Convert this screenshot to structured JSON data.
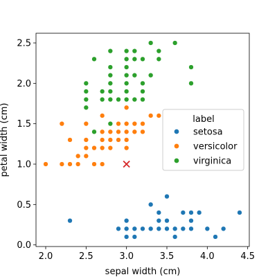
{
  "chart_data": {
    "type": "scatter",
    "xlabel": "sepal width (cm)",
    "ylabel": "petal width (cm)",
    "xlim": [
      1.88,
      4.52
    ],
    "ylim": [
      -0.02,
      2.62
    ],
    "xticks": [
      "2.0",
      "2.5",
      "3.0",
      "3.5",
      "4.0",
      "4.5"
    ],
    "xtick_values": [
      2.0,
      2.5,
      3.0,
      3.5,
      4.0,
      4.5
    ],
    "yticks": [
      "0.0",
      "0.5",
      "1.0",
      "1.5",
      "2.0",
      "2.5"
    ],
    "ytick_values": [
      0.0,
      0.5,
      1.0,
      1.5,
      2.0,
      2.5
    ],
    "grid": false,
    "legend": {
      "title": "label",
      "placement": "center-right",
      "entries": [
        "setosa",
        "versicolor",
        "virginica"
      ]
    },
    "series": [
      {
        "name": "setosa",
        "color": "#1f77b4",
        "points": [
          [
            2.3,
            0.3
          ],
          [
            2.9,
            0.2
          ],
          [
            3.0,
            0.1
          ],
          [
            3.0,
            0.2
          ],
          [
            3.0,
            0.3
          ],
          [
            3.1,
            0.1
          ],
          [
            3.1,
            0.2
          ],
          [
            3.2,
            0.2
          ],
          [
            3.3,
            0.2
          ],
          [
            3.3,
            0.5
          ],
          [
            3.4,
            0.2
          ],
          [
            3.4,
            0.3
          ],
          [
            3.4,
            0.4
          ],
          [
            3.5,
            0.2
          ],
          [
            3.5,
            0.3
          ],
          [
            3.5,
            0.6
          ],
          [
            3.6,
            0.1
          ],
          [
            3.6,
            0.2
          ],
          [
            3.7,
            0.2
          ],
          [
            3.7,
            0.4
          ],
          [
            3.8,
            0.2
          ],
          [
            3.8,
            0.3
          ],
          [
            3.8,
            0.4
          ],
          [
            3.9,
            0.4
          ],
          [
            4.0,
            0.2
          ],
          [
            4.1,
            0.1
          ],
          [
            4.2,
            0.2
          ],
          [
            4.4,
            0.4
          ]
        ]
      },
      {
        "name": "versicolor",
        "color": "#ff7f0e",
        "points": [
          [
            2.0,
            1.0
          ],
          [
            2.2,
            1.0
          ],
          [
            2.2,
            1.5
          ],
          [
            2.3,
            1.0
          ],
          [
            2.3,
            1.3
          ],
          [
            2.4,
            1.0
          ],
          [
            2.4,
            1.1
          ],
          [
            2.5,
            1.1
          ],
          [
            2.5,
            1.2
          ],
          [
            2.5,
            1.3
          ],
          [
            2.5,
            1.5
          ],
          [
            2.6,
            1.0
          ],
          [
            2.6,
            1.2
          ],
          [
            2.6,
            1.4
          ],
          [
            2.7,
            1.0
          ],
          [
            2.7,
            1.2
          ],
          [
            2.7,
            1.3
          ],
          [
            2.7,
            1.4
          ],
          [
            2.7,
            1.6
          ],
          [
            2.8,
            1.2
          ],
          [
            2.8,
            1.3
          ],
          [
            2.8,
            1.4
          ],
          [
            2.8,
            1.5
          ],
          [
            2.9,
            1.3
          ],
          [
            2.9,
            1.4
          ],
          [
            2.9,
            1.5
          ],
          [
            3.0,
            1.2
          ],
          [
            3.0,
            1.3
          ],
          [
            3.0,
            1.4
          ],
          [
            3.0,
            1.5
          ],
          [
            3.0,
            1.7
          ],
          [
            3.1,
            1.4
          ],
          [
            3.1,
            1.5
          ],
          [
            3.2,
            1.4
          ],
          [
            3.2,
            1.5
          ],
          [
            3.3,
            1.6
          ],
          [
            3.4,
            1.6
          ]
        ]
      },
      {
        "name": "virginica",
        "color": "#2ca02c",
        "points": [
          [
            2.5,
            1.7
          ],
          [
            2.5,
            1.8
          ],
          [
            2.5,
            1.9
          ],
          [
            2.5,
            2.0
          ],
          [
            2.6,
            1.4
          ],
          [
            2.6,
            2.3
          ],
          [
            2.7,
            1.8
          ],
          [
            2.7,
            1.9
          ],
          [
            2.8,
            1.5
          ],
          [
            2.8,
            1.8
          ],
          [
            2.8,
            1.9
          ],
          [
            2.8,
            2.0
          ],
          [
            2.8,
            2.1
          ],
          [
            2.8,
            2.2
          ],
          [
            2.8,
            2.4
          ],
          [
            2.9,
            1.8
          ],
          [
            3.0,
            1.8
          ],
          [
            3.0,
            1.9
          ],
          [
            3.0,
            2.0
          ],
          [
            3.0,
            2.1
          ],
          [
            3.0,
            2.2
          ],
          [
            3.0,
            2.3
          ],
          [
            3.0,
            2.4
          ],
          [
            3.1,
            1.8
          ],
          [
            3.1,
            2.1
          ],
          [
            3.1,
            2.3
          ],
          [
            3.1,
            2.4
          ],
          [
            3.2,
            1.8
          ],
          [
            3.2,
            1.9
          ],
          [
            3.2,
            2.0
          ],
          [
            3.2,
            2.3
          ],
          [
            3.3,
            2.1
          ],
          [
            3.3,
            2.5
          ],
          [
            3.4,
            2.3
          ],
          [
            3.4,
            2.4
          ],
          [
            3.6,
            2.5
          ],
          [
            3.8,
            2.0
          ],
          [
            3.8,
            2.2
          ]
        ]
      }
    ],
    "marker": {
      "symbol": "x",
      "color": "#d62728",
      "x": 3.0,
      "y": 1.0
    }
  }
}
